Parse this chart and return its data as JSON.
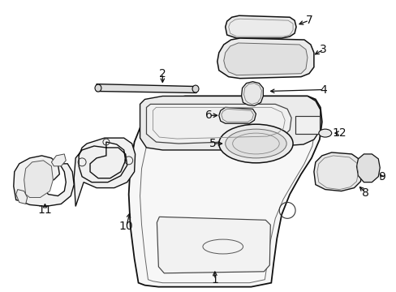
{
  "bg_color": "#ffffff",
  "line_color": "#111111",
  "fig_width": 4.89,
  "fig_height": 3.6,
  "dpi": 100,
  "font_size": 10
}
